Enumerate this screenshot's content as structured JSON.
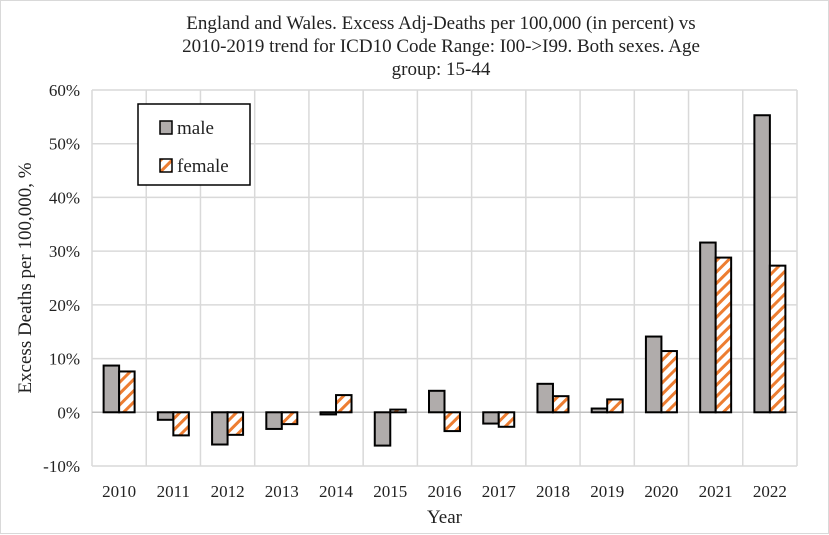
{
  "chart_data": {
    "type": "bar",
    "title": "England and Wales. Excess Adj-Deaths per 100,000 (in percent) vs 2010-2019 trend for ICD10 Code Range: I00->I99. Both sexes. Age group: 15-44",
    "title_lines": [
      "England and Wales. Excess Adj-Deaths per 100,000 (in percent) vs",
      "2010-2019 trend for ICD10 Code Range: I00->I99. Both sexes. Age",
      "group: 15-44"
    ],
    "xlabel": "Year",
    "ylabel": "Excess Deaths per 100,000, %",
    "ylim": [
      -10,
      60
    ],
    "yticks": [
      "-10%",
      "0%",
      "10%",
      "20%",
      "30%",
      "40%",
      "50%",
      "60%"
    ],
    "grid": true,
    "legend_placement": "top-left",
    "categories": [
      "2010",
      "2011",
      "2012",
      "2013",
      "2014",
      "2015",
      "2016",
      "2017",
      "2018",
      "2019",
      "2020",
      "2021",
      "2022"
    ],
    "series": [
      {
        "name": "male",
        "color": "#b0acab",
        "values": [
          8.7,
          -1.4,
          -6.0,
          -3.1,
          -0.4,
          -6.2,
          4.0,
          -2.1,
          5.3,
          0.7,
          14.1,
          31.6,
          55.3
        ]
      },
      {
        "name": "female",
        "color": "#ed7d31",
        "pattern": "hatched",
        "values": [
          7.6,
          -4.3,
          -4.2,
          -2.2,
          3.2,
          0.5,
          -3.5,
          -2.7,
          3.0,
          2.4,
          11.4,
          28.8,
          27.3
        ]
      }
    ]
  }
}
